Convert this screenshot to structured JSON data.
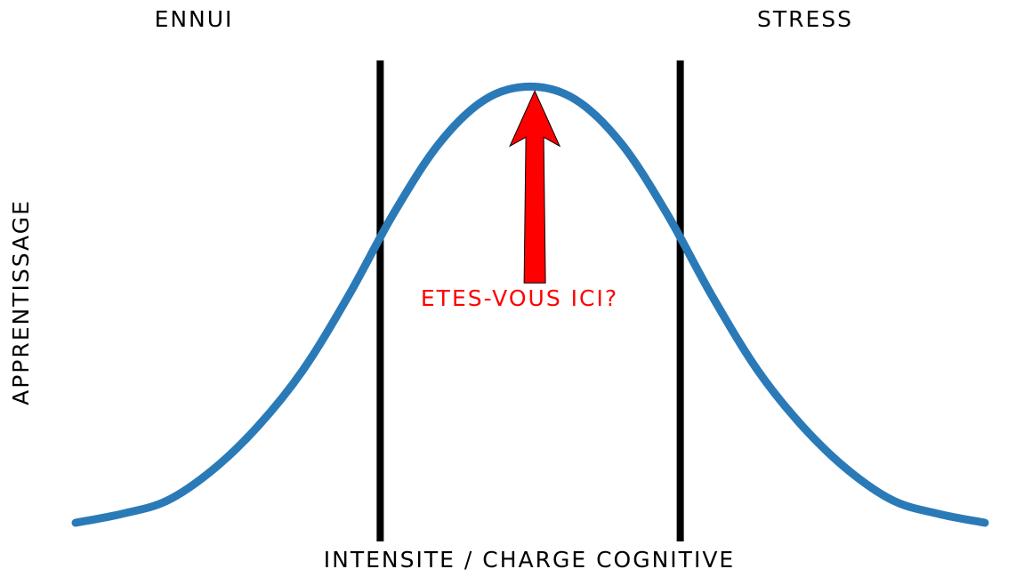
{
  "chart_data": {
    "type": "line",
    "title": "",
    "xlabel": "INTENSITE / CHARGE COGNITIVE",
    "ylabel": "APPRENTISSAGE",
    "xlim": [
      -10,
      10
    ],
    "ylim": [
      0,
      1.06
    ],
    "grid": false,
    "series": [
      {
        "color": "#2a7ab8",
        "x": [
          -10,
          -9,
          -8,
          -7,
          -6,
          -5,
          -4,
          -3,
          -2,
          -1,
          0,
          1,
          2,
          3,
          4,
          5,
          6,
          7,
          8,
          9,
          10
        ],
        "y": [
          0.0,
          0.02,
          0.05,
          0.12,
          0.22,
          0.35,
          0.52,
          0.71,
          0.87,
          0.97,
          1.0,
          0.97,
          0.87,
          0.71,
          0.52,
          0.35,
          0.22,
          0.12,
          0.05,
          0.02,
          0.0
        ]
      }
    ],
    "vlines": [
      {
        "x": -3.3,
        "color": "#000000"
      },
      {
        "x": 3.3,
        "color": "#000000"
      }
    ],
    "region_labels": [
      {
        "text": "ENNUI",
        "x": -6.8
      },
      {
        "text": "STRESS",
        "x": 6.3
      }
    ],
    "annotation": {
      "text": "ETES-VOUS ICI?",
      "color": "#ff0000",
      "arrow_tip": [
        0.1,
        0.99
      ],
      "arrow_base": [
        0.1,
        0.55
      ]
    }
  }
}
